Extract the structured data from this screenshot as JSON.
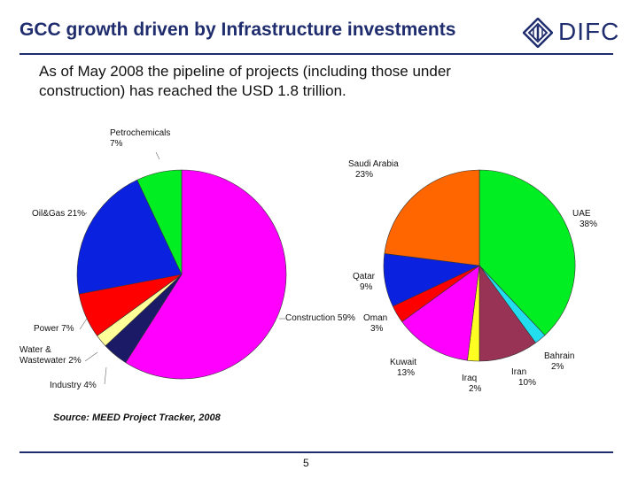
{
  "header": {
    "title": "GCC growth driven by Infrastructure investments",
    "logo_text": "DIFC"
  },
  "body": {
    "subtitle_line1": "As of May 2008 the pipeline of projects (including those under",
    "subtitle_line2": "construction) has reached the USD 1.8 trillion.",
    "source": "Source: MEED Project Tracker, 2008",
    "page_number": "5"
  },
  "chart_data": [
    {
      "type": "pie",
      "title": "",
      "slices": [
        {
          "label": "Construction 59%",
          "value": 59,
          "color": "#ff00ff"
        },
        {
          "label": "Industry 4%",
          "value": 4,
          "color": "#1a1a66"
        },
        {
          "label": "Water & Wastewater 2%",
          "value": 2,
          "color": "#ffff99"
        },
        {
          "label": "Power 7%",
          "value": 7,
          "color": "#ff0000"
        },
        {
          "label": "Oil&Gas 21%",
          "value": 21,
          "color": "#0a22e0"
        },
        {
          "label": "Petrochemicals 7%",
          "value": 7,
          "color": "#00ee22"
        }
      ],
      "label_lines": {
        "Construction 59%": [
          "Construction 59%"
        ],
        "Industry 4%": [
          "Industry 4%"
        ],
        "Water & Wastewater 2%": [
          "Water &",
          "Wastewater 2%"
        ],
        "Power 7%": [
          "Power 7%"
        ],
        "Oil&Gas 21%": [
          "Oil&Gas 21%"
        ],
        "Petrochemicals 7%": [
          "Petrochemicals",
          "7%"
        ]
      }
    },
    {
      "type": "pie",
      "title": "",
      "slices": [
        {
          "label": "UAE 38%",
          "value": 38,
          "color": "#00ee22"
        },
        {
          "label": "Bahrain 2%",
          "value": 2,
          "color": "#22ddee"
        },
        {
          "label": "Iran 10%",
          "value": 10,
          "color": "#993355"
        },
        {
          "label": "Iraq 2%",
          "value": 2,
          "color": "#ffff22"
        },
        {
          "label": "Kuwait 13%",
          "value": 13,
          "color": "#ff00ff"
        },
        {
          "label": "Oman 3%",
          "value": 3,
          "color": "#ff0000"
        },
        {
          "label": "Qatar 9%",
          "value": 9,
          "color": "#0a22e0"
        },
        {
          "label": "Saudi Arabia 23%",
          "value": 23,
          "color": "#ff6600"
        }
      ],
      "label_lines": {
        "UAE 38%": [
          "UAE",
          "38%"
        ],
        "Bahrain 2%": [
          "Bahrain",
          "2%"
        ],
        "Iran 10%": [
          "Iran",
          "10%"
        ],
        "Iraq 2%": [
          "Iraq",
          "2%"
        ],
        "Kuwait 13%": [
          "Kuwait",
          "13%"
        ],
        "Oman 3%": [
          "Oman",
          "3%"
        ],
        "Qatar 9%": [
          "Qatar",
          "9%"
        ],
        "Saudi Arabia 23%": [
          "Saudi Arabia",
          "23%"
        ]
      }
    }
  ]
}
